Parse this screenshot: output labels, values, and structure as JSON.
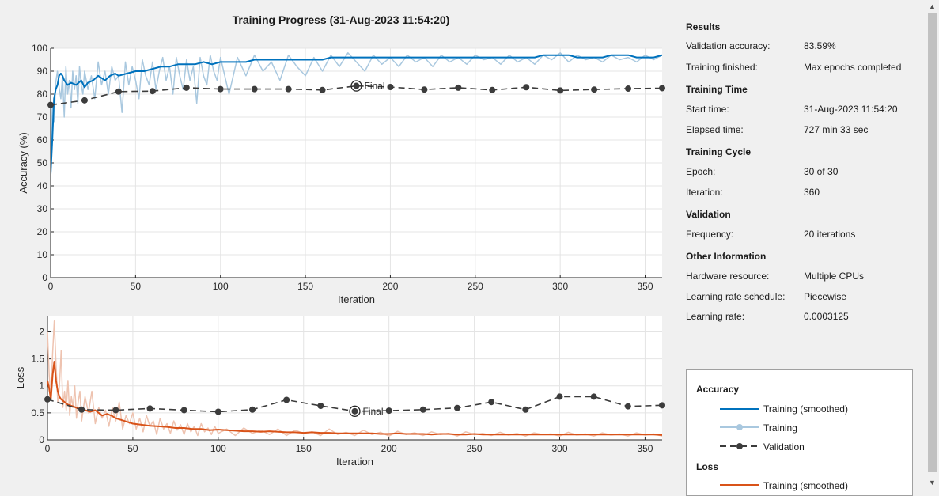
{
  "title": "Training Progress (31-Aug-2023 11:54:20)",
  "sidebar": {
    "sections": [
      {
        "header": "Results",
        "rows": [
          {
            "label": "Validation accuracy:",
            "value": "83.59%"
          },
          {
            "label": "Training finished:",
            "value": "Max epochs completed"
          }
        ]
      },
      {
        "header": "Training Time",
        "rows": [
          {
            "label": "Start time:",
            "value": "31-Aug-2023 11:54:20"
          },
          {
            "label": "Elapsed time:",
            "value": "727 min 33 sec"
          }
        ]
      },
      {
        "header": "Training Cycle",
        "rows": [
          {
            "label": "Epoch:",
            "value": "30 of 30"
          },
          {
            "label": "Iteration:",
            "value": "360"
          }
        ]
      },
      {
        "header": "Validation",
        "rows": [
          {
            "label": "Frequency:",
            "value": "20 iterations"
          }
        ]
      },
      {
        "header": "Other Information",
        "rows": [
          {
            "label": "Hardware resource:",
            "value": "Multiple CPUs"
          },
          {
            "label": "Learning rate schedule:",
            "value": "Piecewise"
          },
          {
            "label": "Learning rate:",
            "value": "0.0003125"
          }
        ]
      }
    ]
  },
  "legend": {
    "accuracy_header": "Accuracy",
    "loss_header": "Loss",
    "accuracy_items": [
      "Training (smoothed)",
      "Training",
      "Validation"
    ],
    "loss_items": [
      "Training (smoothed)"
    ]
  },
  "colors": {
    "acc_smooth": "#0072bd",
    "acc_raw": "#a9c8df",
    "loss_smooth": "#d95319",
    "loss_raw": "#eec3b0",
    "validation": "#3c3c3c"
  },
  "chart_data": [
    {
      "type": "line",
      "title": "",
      "xlabel": "Iteration",
      "ylabel": "Accuracy (%)",
      "xlim": [
        0,
        360
      ],
      "ylim": [
        0,
        100
      ],
      "xticks": [
        0,
        50,
        100,
        150,
        200,
        250,
        300,
        350
      ],
      "yticks": [
        0,
        10,
        20,
        30,
        40,
        50,
        60,
        70,
        80,
        90,
        100
      ],
      "grid": true,
      "final_label": "Final",
      "final_point": {
        "x": 180,
        "y": 83.6
      },
      "series": [
        {
          "name": "Training (smoothed)",
          "role": "smooth",
          "x": [
            0,
            1,
            2,
            3,
            4,
            5,
            6,
            7,
            8,
            10,
            12,
            15,
            18,
            20,
            22,
            25,
            28,
            30,
            32,
            35,
            38,
            40,
            45,
            50,
            55,
            60,
            65,
            70,
            75,
            80,
            85,
            90,
            95,
            100,
            105,
            110,
            115,
            120,
            125,
            130,
            135,
            140,
            145,
            150,
            155,
            160,
            165,
            170,
            175,
            180,
            185,
            190,
            195,
            200,
            205,
            210,
            215,
            220,
            225,
            230,
            235,
            240,
            245,
            250,
            255,
            260,
            265,
            270,
            275,
            280,
            285,
            290,
            295,
            300,
            305,
            310,
            315,
            320,
            325,
            330,
            335,
            340,
            345,
            350,
            355,
            360
          ],
          "y": [
            45,
            60,
            78,
            82,
            84,
            88,
            89,
            88,
            86,
            84,
            85,
            84,
            86,
            83,
            85,
            86,
            88,
            87,
            86,
            88,
            89,
            88,
            89,
            90,
            90,
            91,
            92,
            92,
            93,
            93,
            93,
            94,
            93,
            94,
            94,
            94,
            94,
            95,
            95,
            95,
            95,
            95,
            95,
            95,
            95,
            95,
            96,
            96,
            96,
            96,
            96,
            96,
            96,
            96,
            96,
            96,
            96,
            96,
            96,
            96,
            96,
            96,
            96,
            96,
            96,
            96,
            96,
            96,
            96,
            96,
            96,
            97,
            97,
            97,
            97,
            96,
            96,
            96,
            96,
            97,
            97,
            97,
            96,
            96,
            96,
            97
          ]
        },
        {
          "name": "Training",
          "role": "raw",
          "x": [
            0,
            1,
            2,
            3,
            4,
            5,
            6,
            7,
            8,
            9,
            10,
            11,
            12,
            13,
            14,
            15,
            16,
            17,
            18,
            19,
            20,
            22,
            24,
            26,
            28,
            30,
            32,
            34,
            36,
            38,
            40,
            42,
            44,
            46,
            48,
            50,
            52,
            54,
            56,
            58,
            60,
            62,
            64,
            66,
            68,
            70,
            72,
            74,
            76,
            78,
            80,
            82,
            84,
            86,
            88,
            90,
            92,
            94,
            96,
            98,
            100,
            105,
            110,
            115,
            120,
            125,
            130,
            135,
            140,
            145,
            150,
            155,
            160,
            165,
            170,
            175,
            180,
            185,
            190,
            195,
            200,
            205,
            210,
            215,
            220,
            225,
            230,
            235,
            240,
            245,
            250,
            255,
            260,
            265,
            270,
            275,
            280,
            285,
            290,
            295,
            300,
            305,
            310,
            315,
            320,
            325,
            330,
            335,
            340,
            345,
            350,
            355,
            360
          ],
          "y": [
            42,
            75,
            68,
            85,
            90,
            83,
            78,
            88,
            70,
            92,
            80,
            86,
            74,
            90,
            82,
            88,
            76,
            92,
            84,
            80,
            90,
            82,
            88,
            78,
            94,
            84,
            90,
            80,
            92,
            86,
            88,
            72,
            94,
            84,
            92,
            86,
            78,
            95,
            88,
            84,
            94,
            82,
            90,
            96,
            86,
            92,
            80,
            96,
            88,
            82,
            95,
            86,
            92,
            76,
            96,
            88,
            84,
            97,
            90,
            86,
            96,
            80,
            96,
            88,
            97,
            90,
            94,
            86,
            97,
            92,
            88,
            96,
            90,
            97,
            92,
            98,
            94,
            90,
            97,
            93,
            96,
            92,
            97,
            94,
            96,
            92,
            97,
            94,
            96,
            93,
            97,
            95,
            96,
            93,
            97,
            94,
            96,
            93,
            97,
            95,
            98,
            94,
            97,
            95,
            96,
            94,
            97,
            95,
            96,
            94,
            97,
            95,
            97
          ]
        },
        {
          "name": "Validation",
          "role": "validation",
          "x": [
            0,
            20,
            40,
            60,
            80,
            100,
            120,
            140,
            160,
            180,
            200,
            220,
            240,
            260,
            280,
            300,
            320,
            340,
            360
          ],
          "y": [
            75.3,
            77.3,
            81.1,
            81.3,
            82.8,
            82.2,
            82.2,
            82.2,
            81.8,
            83.6,
            83.1,
            82.0,
            82.8,
            81.8,
            83.0,
            81.6,
            82.0,
            82.4,
            82.6
          ]
        }
      ]
    },
    {
      "type": "line",
      "title": "",
      "xlabel": "Iteration",
      "ylabel": "Loss",
      "xlim": [
        0,
        360
      ],
      "ylim": [
        0,
        2.3
      ],
      "xticks": [
        0,
        50,
        100,
        150,
        200,
        250,
        300,
        350
      ],
      "yticks": [
        0,
        0.5,
        1,
        1.5,
        2
      ],
      "grid": true,
      "final_label": "Final",
      "final_point": {
        "x": 180,
        "y": 0.53
      },
      "series": [
        {
          "name": "Training (smoothed)",
          "role": "smooth",
          "x": [
            0,
            1,
            2,
            3,
            4,
            5,
            6,
            7,
            8,
            10,
            12,
            15,
            18,
            20,
            22,
            25,
            28,
            30,
            32,
            35,
            38,
            40,
            45,
            50,
            55,
            60,
            65,
            70,
            75,
            80,
            85,
            90,
            95,
            100,
            105,
            110,
            115,
            120,
            125,
            130,
            135,
            140,
            145,
            150,
            155,
            160,
            165,
            170,
            175,
            180,
            185,
            190,
            195,
            200,
            205,
            210,
            215,
            220,
            225,
            230,
            235,
            240,
            245,
            250,
            255,
            260,
            265,
            270,
            275,
            280,
            285,
            290,
            295,
            300,
            305,
            310,
            315,
            320,
            325,
            330,
            335,
            340,
            345,
            350,
            355,
            360
          ],
          "y": [
            1.1,
            0.95,
            0.75,
            1.2,
            1.45,
            1.1,
            0.9,
            0.8,
            0.75,
            0.7,
            0.65,
            0.62,
            0.58,
            0.6,
            0.55,
            0.52,
            0.55,
            0.5,
            0.45,
            0.48,
            0.44,
            0.4,
            0.35,
            0.3,
            0.28,
            0.26,
            0.25,
            0.24,
            0.22,
            0.22,
            0.2,
            0.2,
            0.18,
            0.19,
            0.18,
            0.17,
            0.16,
            0.16,
            0.15,
            0.16,
            0.15,
            0.14,
            0.14,
            0.13,
            0.14,
            0.13,
            0.13,
            0.12,
            0.12,
            0.12,
            0.12,
            0.12,
            0.11,
            0.11,
            0.12,
            0.11,
            0.11,
            0.11,
            0.1,
            0.11,
            0.11,
            0.1,
            0.1,
            0.11,
            0.1,
            0.1,
            0.1,
            0.1,
            0.1,
            0.1,
            0.1,
            0.1,
            0.1,
            0.1,
            0.1,
            0.1,
            0.1,
            0.1,
            0.1,
            0.1,
            0.1,
            0.1,
            0.1,
            0.1,
            0.1,
            0.09
          ]
        },
        {
          "name": "Training",
          "role": "raw",
          "x": [
            0,
            1,
            2,
            3,
            4,
            5,
            6,
            7,
            8,
            9,
            10,
            11,
            12,
            13,
            14,
            15,
            16,
            17,
            18,
            19,
            20,
            22,
            24,
            26,
            28,
            30,
            32,
            34,
            36,
            38,
            40,
            42,
            44,
            46,
            48,
            50,
            52,
            54,
            56,
            58,
            60,
            62,
            64,
            66,
            68,
            70,
            72,
            74,
            76,
            78,
            80,
            82,
            84,
            86,
            88,
            90,
            92,
            94,
            96,
            98,
            100,
            105,
            110,
            115,
            120,
            125,
            130,
            135,
            140,
            145,
            150,
            155,
            160,
            165,
            170,
            175,
            180,
            185,
            190,
            195,
            200,
            205,
            210,
            215,
            220,
            225,
            230,
            235,
            240,
            245,
            250,
            255,
            260,
            265,
            270,
            275,
            280,
            285,
            290,
            295,
            300,
            305,
            310,
            315,
            320,
            325,
            330,
            335,
            340,
            345,
            350,
            355,
            360
          ],
          "y": [
            2.0,
            1.2,
            0.8,
            1.6,
            2.2,
            1.4,
            0.7,
            1.0,
            1.65,
            0.6,
            0.9,
            0.55,
            1.1,
            0.45,
            0.8,
            0.6,
            1.0,
            0.4,
            0.7,
            0.9,
            0.35,
            0.8,
            0.5,
            0.9,
            0.3,
            0.6,
            0.4,
            0.55,
            0.25,
            0.6,
            0.35,
            0.7,
            0.2,
            0.45,
            0.3,
            0.5,
            0.2,
            0.4,
            0.15,
            0.45,
            0.25,
            0.35,
            0.1,
            0.4,
            0.2,
            0.3,
            0.12,
            0.35,
            0.18,
            0.28,
            0.1,
            0.3,
            0.15,
            0.25,
            0.08,
            0.3,
            0.15,
            0.22,
            0.1,
            0.25,
            0.12,
            0.2,
            0.08,
            0.22,
            0.12,
            0.18,
            0.1,
            0.2,
            0.08,
            0.18,
            0.12,
            0.15,
            0.08,
            0.2,
            0.1,
            0.14,
            0.08,
            0.18,
            0.1,
            0.14,
            0.07,
            0.16,
            0.1,
            0.13,
            0.08,
            0.15,
            0.1,
            0.12,
            0.07,
            0.15,
            0.1,
            0.12,
            0.08,
            0.14,
            0.09,
            0.12,
            0.07,
            0.13,
            0.1,
            0.11,
            0.07,
            0.14,
            0.09,
            0.11,
            0.07,
            0.13,
            0.09,
            0.11,
            0.07,
            0.13,
            0.09,
            0.11,
            0.07
          ]
        },
        {
          "name": "Validation",
          "role": "validation",
          "x": [
            0,
            20,
            40,
            60,
            80,
            100,
            120,
            140,
            160,
            180,
            200,
            220,
            240,
            260,
            280,
            300,
            320,
            340,
            360
          ],
          "y": [
            0.75,
            0.56,
            0.55,
            0.58,
            0.55,
            0.52,
            0.56,
            0.74,
            0.63,
            0.53,
            0.54,
            0.56,
            0.59,
            0.7,
            0.56,
            0.8,
            0.8,
            0.62,
            0.64
          ]
        }
      ]
    }
  ]
}
